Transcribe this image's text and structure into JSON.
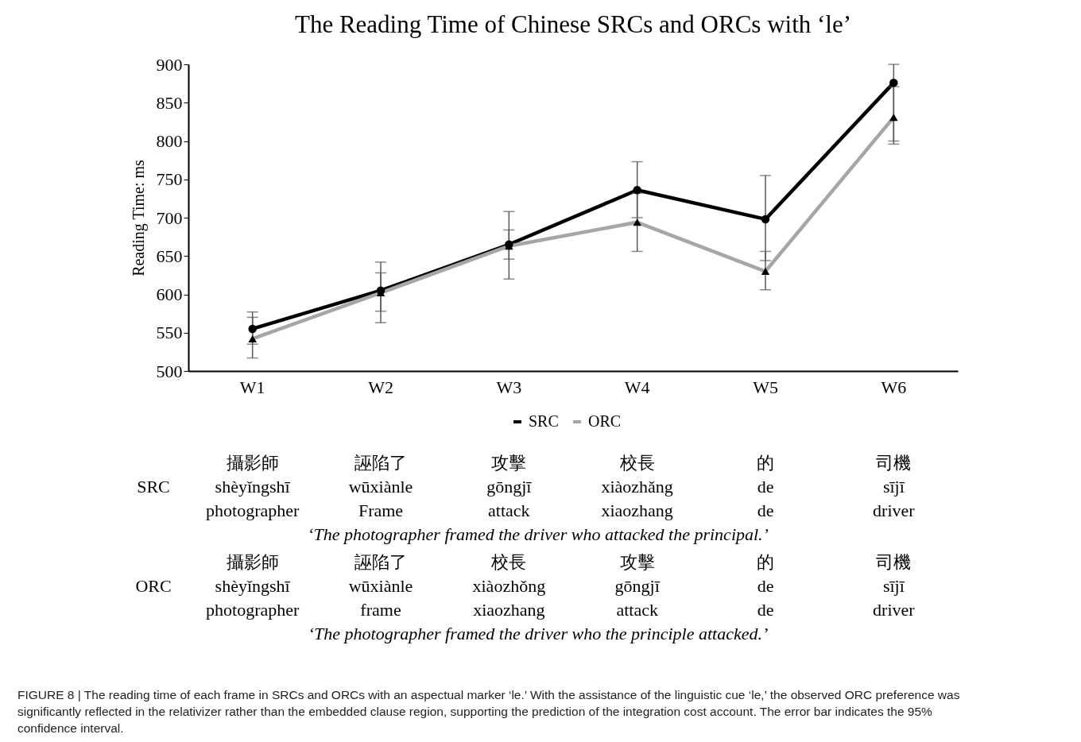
{
  "chart_data": {
    "type": "line",
    "title": "The Reading Time of Chinese SRCs and ORCs with ‘le’",
    "ylabel": "Reading Time: ms",
    "categories": [
      "W1",
      "W2",
      "W3",
      "W4",
      "W5",
      "W6"
    ],
    "series": [
      {
        "name": "SRC",
        "color": "#000000",
        "marker": "circle",
        "values": [
          555,
          605,
          665,
          736,
          698,
          876
        ],
        "errors": [
          [
            535,
            577
          ],
          [
            563,
            642
          ],
          [
            620,
            708
          ],
          [
            700,
            773
          ],
          [
            644,
            755
          ],
          [
            800,
            900
          ]
        ]
      },
      {
        "name": "ORC",
        "color": "#a6a6a6",
        "marker": "triangle",
        "values": [
          542,
          602,
          663,
          694,
          630,
          831
        ],
        "errors": [
          [
            517,
            570
          ],
          [
            578,
            628
          ],
          [
            646,
            684
          ],
          [
            656,
            732
          ],
          [
            606,
            656
          ],
          [
            796,
            871
          ]
        ]
      }
    ],
    "ylim": [
      500,
      900
    ],
    "yticks": [
      500,
      550,
      600,
      650,
      700,
      750,
      800,
      850,
      900
    ],
    "grid": false,
    "legend": "bottom",
    "line_style": "solid",
    "annotations": [
      "SRC",
      "攝影師",
      "誣陷了",
      "攻擊",
      "校長",
      "的",
      "司機",
      "shèyǐngshī",
      "wūxiànle",
      "gōngjī",
      "xiàozhǎng",
      "de",
      "sījī",
      "photographer",
      "Frame",
      "attack",
      "xiaozhang",
      "de",
      "driver",
      "‘The photographer framed the driver who attacked the principal.’",
      "ORC",
      "攝影師",
      "誣陷了",
      "校長",
      "攻擊",
      "的",
      "司機",
      "shèyǐngshī",
      "wūxiànle",
      "xiàozhǒng",
      "gōngjī",
      "de",
      "sījī",
      "photographer",
      "frame",
      "xiaozhang",
      "attack",
      "de",
      "driver",
      "‘The photographer framed the driver who the principle attacked.’",
      "FIGURE 8 | The reading time of each frame in SRCs and ORCs with an aspectual marker ‘le.’ With the assistance of the linguistic cue ‘le,’ the observed ORC preference was significantly reflected in the relativizer rather than the embedded clause region, supporting the prediction of the integration cost account. The error bar indicates the 95% confidence interval."
    ]
  }
}
